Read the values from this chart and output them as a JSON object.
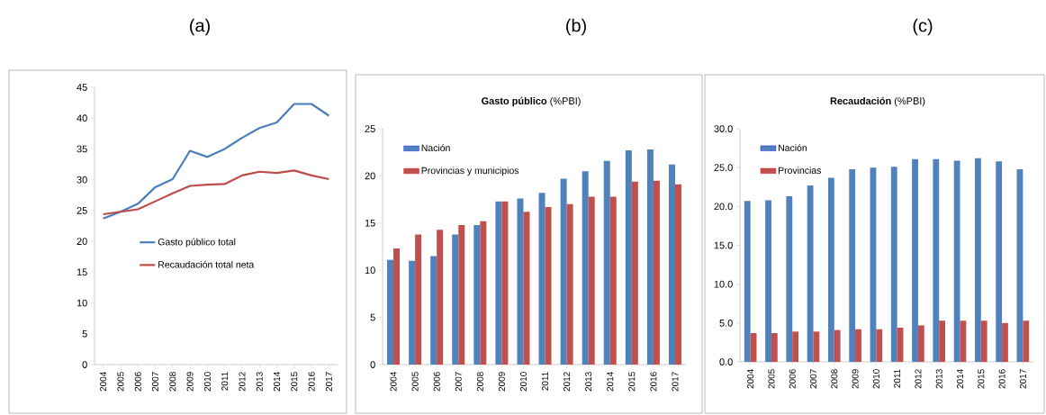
{
  "chart_data": [
    {
      "type": "line",
      "title": "(a)",
      "categories": [
        "2004",
        "2005",
        "2006",
        "2007",
        "2008",
        "2009",
        "2010",
        "2011",
        "2012",
        "2013",
        "2014",
        "2015",
        "2016",
        "2017"
      ],
      "ylim": [
        0,
        45
      ],
      "yticks": [
        0,
        5,
        10,
        15,
        20,
        25,
        30,
        35,
        40,
        45
      ],
      "legend": "left",
      "marker": "none",
      "line_style": "solid",
      "series": [
        {
          "name": "Gasto público total",
          "color": "#4a7ebb",
          "values": [
            23.7,
            24.8,
            26.1,
            28.8,
            30.1,
            34.7,
            33.7,
            35.0,
            36.8,
            38.4,
            39.3,
            42.3,
            42.3,
            40.4
          ]
        },
        {
          "name": "Recaudación total neta",
          "color": "#be4b48",
          "values": [
            24.4,
            24.8,
            25.2,
            26.5,
            27.8,
            29.0,
            29.2,
            29.3,
            30.7,
            31.3,
            31.1,
            31.5,
            30.7,
            30.1
          ]
        }
      ]
    },
    {
      "type": "bar",
      "title": "(b)",
      "subtitle": "**Gasto público** (%PBI)",
      "categories": [
        "2004",
        "2005",
        "2006",
        "2007",
        "2008",
        "2009",
        "2010",
        "2011",
        "2012",
        "2013",
        "2014",
        "2015",
        "2016",
        "2017"
      ],
      "ylim": [
        0,
        25
      ],
      "yticks": [
        0,
        5,
        10,
        15,
        20,
        25
      ],
      "legend": "top left",
      "series": [
        {
          "name": "Nación",
          "color": "#4f81bd",
          "values": [
            11.1,
            11.0,
            11.5,
            13.8,
            14.8,
            17.3,
            17.6,
            18.2,
            19.7,
            20.5,
            21.6,
            22.7,
            22.8,
            21.2
          ]
        },
        {
          "name": "Provincias y municipios",
          "color": "#c0504d",
          "values": [
            12.3,
            13.8,
            14.3,
            14.8,
            15.2,
            17.3,
            16.2,
            16.7,
            17.0,
            17.8,
            17.8,
            19.4,
            19.5,
            19.1
          ]
        }
      ]
    },
    {
      "type": "bar",
      "title": "(c)",
      "subtitle": "**Recaudación** (%PBI)",
      "categories": [
        "2004",
        "2005",
        "2006",
        "2007",
        "2008",
        "2009",
        "2010",
        "2011",
        "2012",
        "2013",
        "2014",
        "2015",
        "2016",
        "2017"
      ],
      "ylim": [
        0,
        30
      ],
      "yticks": [
        {
          "value": 0,
          "label": "0.0"
        },
        {
          "value": 5,
          "label": "5.0"
        },
        {
          "value": 10,
          "label": "10.0"
        },
        {
          "value": 15,
          "label": "15.0"
        },
        {
          "value": 20,
          "label": "20.0"
        },
        {
          "value": 25,
          "label": "25.0"
        },
        {
          "value": 30,
          "label": "30.0"
        }
      ],
      "legend": "top left",
      "series": [
        {
          "name": "Nación",
          "color": "#4f81bd",
          "values": [
            20.7,
            20.8,
            21.3,
            22.7,
            23.7,
            24.8,
            25.0,
            25.1,
            26.1,
            26.1,
            25.9,
            26.2,
            25.8,
            24.8
          ]
        },
        {
          "name": "Provincias",
          "color": "#c0504d",
          "values": [
            3.7,
            3.7,
            3.9,
            3.9,
            4.1,
            4.2,
            4.2,
            4.4,
            4.7,
            5.3,
            5.3,
            5.3,
            5.0,
            5.3
          ]
        }
      ]
    }
  ]
}
